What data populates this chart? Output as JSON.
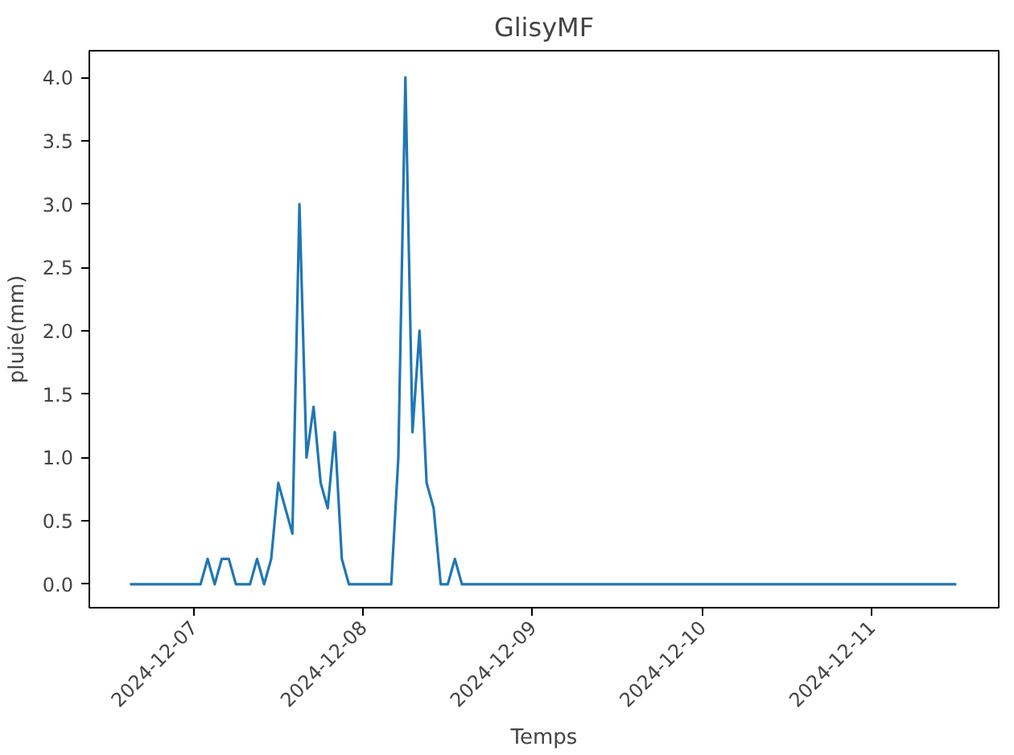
{
  "chart_data": {
    "type": "line",
    "title": "GlisyMF",
    "xlabel": "Temps",
    "ylabel": "pluie(mm)",
    "x": [
      "2024-12-06T15:00",
      "2024-12-07T01:00",
      "2024-12-07T02:00",
      "2024-12-07T03:00",
      "2024-12-07T04:00",
      "2024-12-07T05:00",
      "2024-12-07T06:00",
      "2024-12-07T07:00",
      "2024-12-07T08:00",
      "2024-12-07T09:00",
      "2024-12-07T10:00",
      "2024-12-07T11:00",
      "2024-12-07T12:00",
      "2024-12-07T13:00",
      "2024-12-07T14:00",
      "2024-12-07T15:00",
      "2024-12-07T16:00",
      "2024-12-07T17:00",
      "2024-12-07T18:00",
      "2024-12-07T19:00",
      "2024-12-07T20:00",
      "2024-12-07T21:00",
      "2024-12-07T22:00",
      "2024-12-08T04:00",
      "2024-12-08T05:00",
      "2024-12-08T06:00",
      "2024-12-08T07:00",
      "2024-12-08T08:00",
      "2024-12-08T09:00",
      "2024-12-08T10:00",
      "2024-12-08T11:00",
      "2024-12-08T12:00",
      "2024-12-08T13:00",
      "2024-12-08T14:00",
      "2024-12-11T12:00"
    ],
    "series": [
      {
        "color": "#1f77b4",
        "values": [
          0,
          0,
          0.2,
          0,
          0.2,
          0.2,
          0,
          0,
          0,
          0.2,
          0,
          0.2,
          0.8,
          0.6,
          0.4,
          3.0,
          1.0,
          1.4,
          0.8,
          0.6,
          1.2,
          0.2,
          0,
          0,
          1.0,
          4.0,
          1.2,
          2.0,
          0.8,
          0.6,
          0,
          0,
          0.2,
          0,
          0
        ]
      }
    ],
    "xlim": [
      "2024-12-06T09:15",
      "2024-12-11T18:00"
    ],
    "xticks": [
      "2024-12-07",
      "2024-12-08",
      "2024-12-09",
      "2024-12-10",
      "2024-12-11"
    ],
    "ylim": [
      -0.185,
      4.21
    ],
    "yticks": [
      {
        "value": 0,
        "label": "0.0"
      },
      {
        "value": 0.5,
        "label": "0.5"
      },
      {
        "value": 1,
        "label": "1.0"
      },
      {
        "value": 1.5,
        "label": "1.5"
      },
      {
        "value": 2,
        "label": "2.0"
      },
      {
        "value": 2.5,
        "label": "2.5"
      },
      {
        "value": 3,
        "label": "3.0"
      },
      {
        "value": 3.5,
        "label": "3.5"
      },
      {
        "value": 4,
        "label": "4.0"
      }
    ],
    "grid": false,
    "marker": "none",
    "line_style": "solid"
  }
}
